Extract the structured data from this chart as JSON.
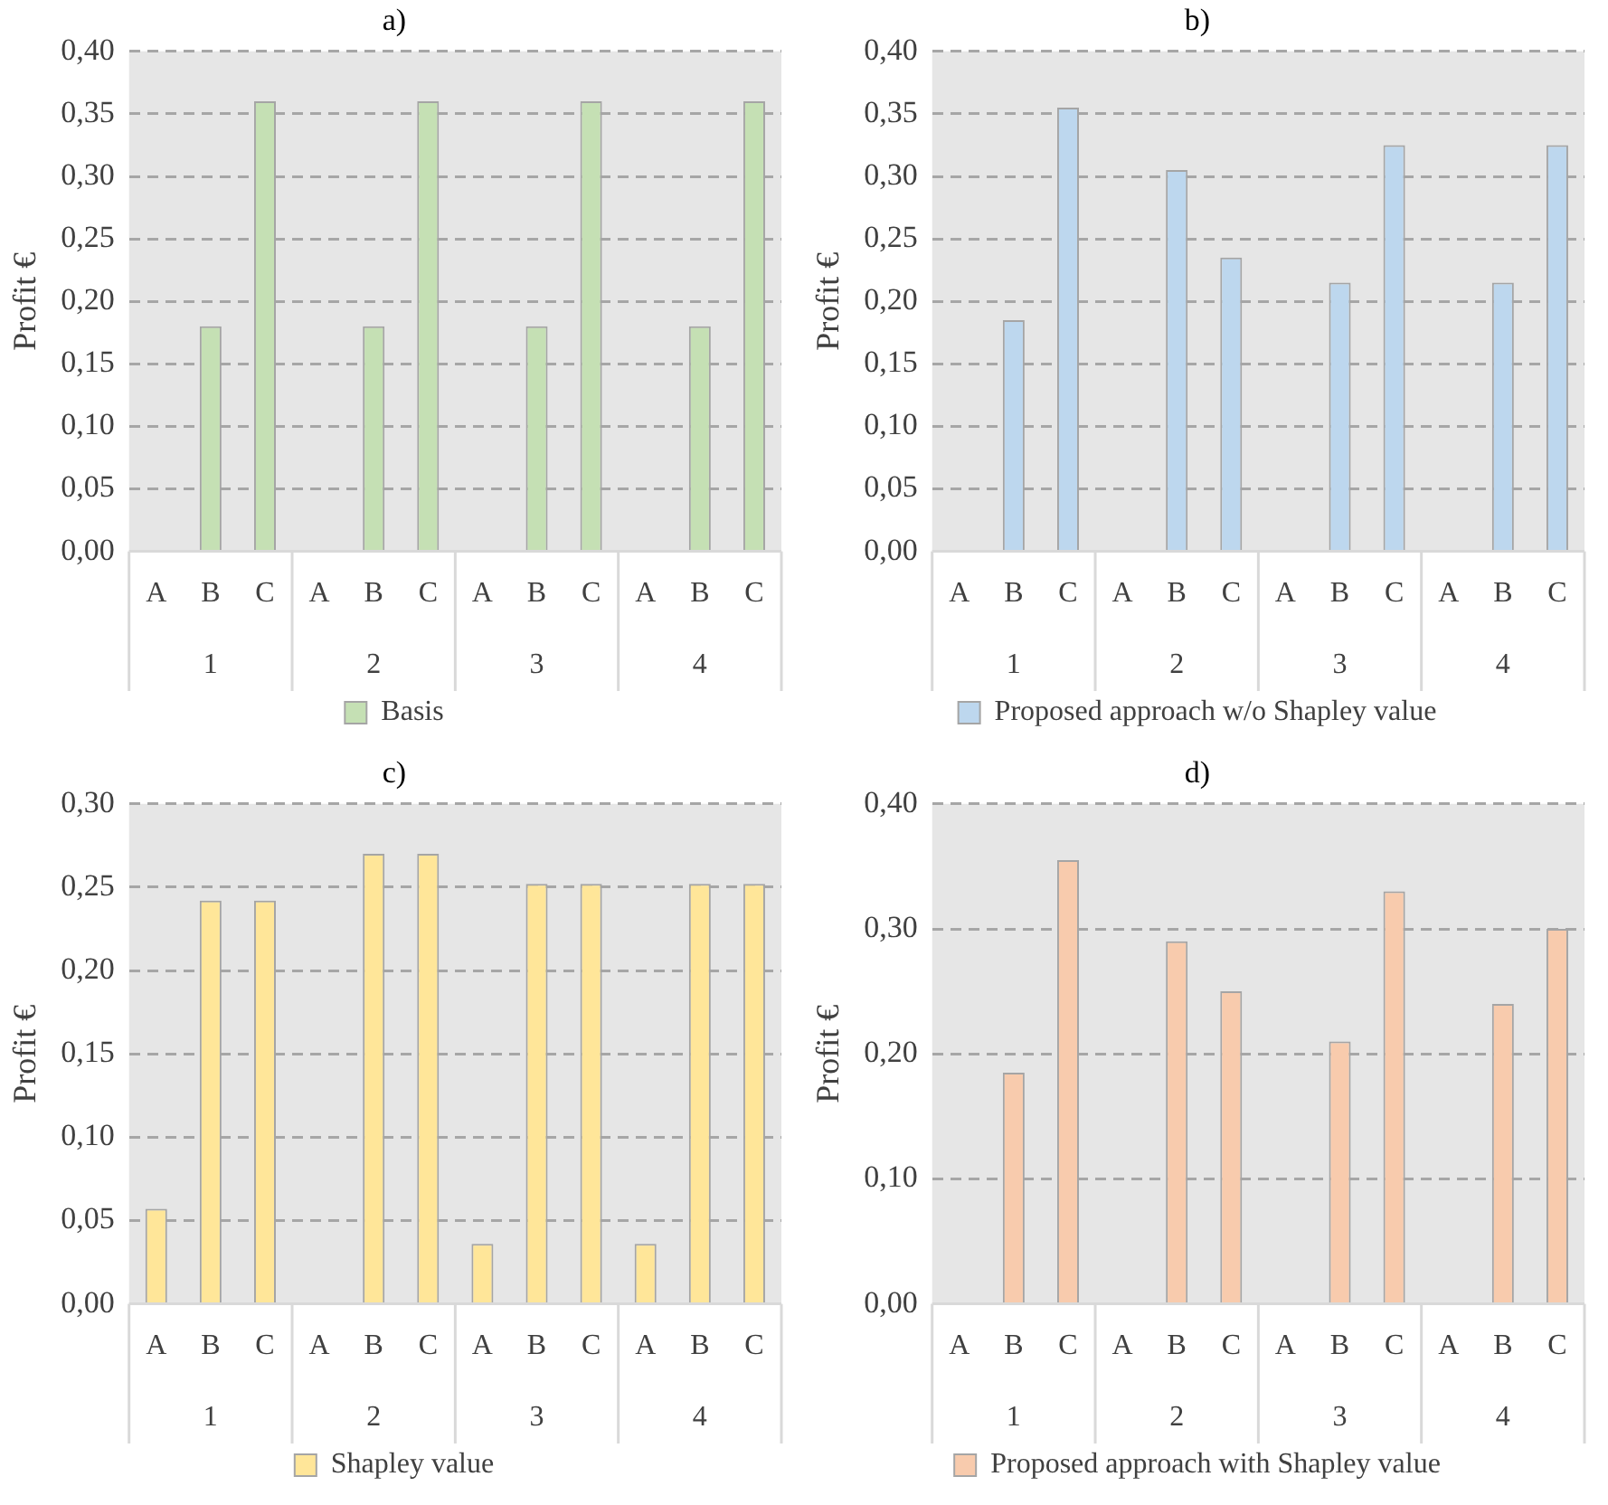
{
  "chart_data": [
    {
      "type": "bar",
      "title": "a)",
      "ylabel": "Profit €",
      "categories": [
        "A",
        "B",
        "C",
        "A",
        "B",
        "C",
        "A",
        "B",
        "C",
        "A",
        "B",
        "C"
      ],
      "series": [
        {
          "name": "Basis",
          "color": "#c5e0b4",
          "values": [
            0,
            0.18,
            0.36,
            0,
            0.18,
            0.36,
            0,
            0.18,
            0.36,
            0,
            0.18,
            0.36
          ]
        }
      ],
      "ylim": [
        0,
        0.4
      ],
      "yticks": [
        {
          "value": 0,
          "label": "0,00"
        },
        {
          "value": 0.05,
          "label": "0,05"
        },
        {
          "value": 0.1,
          "label": "0,10"
        },
        {
          "value": 0.15,
          "label": "0,15"
        },
        {
          "value": 0.2,
          "label": "0,20"
        },
        {
          "value": 0.25,
          "label": "0,25"
        },
        {
          "value": 0.3,
          "label": "0,30"
        },
        {
          "value": 0.35,
          "label": "0,35"
        },
        {
          "value": 0.4,
          "label": "0,40"
        }
      ],
      "grid": "y",
      "legend": "bottom",
      "annotations": [
        "1",
        "2",
        "3",
        "4"
      ]
    },
    {
      "type": "bar",
      "title": "b)",
      "ylabel": "Profit €",
      "categories": [
        "A",
        "B",
        "C",
        "A",
        "B",
        "C",
        "A",
        "B",
        "C",
        "A",
        "B",
        "C"
      ],
      "series": [
        {
          "name": "Proposed approach w/o Shapley value",
          "color": "#bdd7ee",
          "values": [
            0,
            0.185,
            0.355,
            0,
            0.305,
            0.235,
            0,
            0.215,
            0.325,
            0,
            0.215,
            0.325
          ]
        }
      ],
      "ylim": [
        0,
        0.4
      ],
      "yticks": [
        {
          "value": 0,
          "label": "0,00"
        },
        {
          "value": 0.05,
          "label": "0,05"
        },
        {
          "value": 0.1,
          "label": "0,10"
        },
        {
          "value": 0.15,
          "label": "0,15"
        },
        {
          "value": 0.2,
          "label": "0,20"
        },
        {
          "value": 0.25,
          "label": "0,25"
        },
        {
          "value": 0.3,
          "label": "0,30"
        },
        {
          "value": 0.35,
          "label": "0,35"
        },
        {
          "value": 0.4,
          "label": "0,40"
        }
      ],
      "grid": "y",
      "legend": "bottom",
      "annotations": [
        "1",
        "2",
        "3",
        "4"
      ]
    },
    {
      "type": "bar",
      "title": "c)",
      "ylabel": "Profit €",
      "categories": [
        "A",
        "B",
        "C",
        "A",
        "B",
        "C",
        "A",
        "B",
        "C",
        "A",
        "B",
        "C"
      ],
      "series": [
        {
          "name": "Shapley value",
          "color": "#ffe699",
          "values": [
            0.057,
            0.242,
            0.242,
            0,
            0.27,
            0.27,
            0.036,
            0.252,
            0.252,
            0.036,
            0.252,
            0.252
          ]
        }
      ],
      "ylim": [
        0,
        0.3
      ],
      "yticks": [
        {
          "value": 0,
          "label": "0,00"
        },
        {
          "value": 0.05,
          "label": "0,05"
        },
        {
          "value": 0.1,
          "label": "0,10"
        },
        {
          "value": 0.15,
          "label": "0,15"
        },
        {
          "value": 0.2,
          "label": "0,20"
        },
        {
          "value": 0.25,
          "label": "0,25"
        },
        {
          "value": 0.3,
          "label": "0,30"
        }
      ],
      "grid": "y",
      "legend": "bottom",
      "annotations": [
        "1",
        "2",
        "3",
        "4"
      ]
    },
    {
      "type": "bar",
      "title": "d)",
      "ylabel": "Profit €",
      "categories": [
        "A",
        "B",
        "C",
        "A",
        "B",
        "C",
        "A",
        "B",
        "C",
        "A",
        "B",
        "C"
      ],
      "series": [
        {
          "name": "Proposed approach with Shapley value",
          "color": "#f8cbad",
          "values": [
            0,
            0.185,
            0.355,
            0,
            0.29,
            0.25,
            0,
            0.21,
            0.33,
            0,
            0.24,
            0.3
          ]
        }
      ],
      "ylim": [
        0,
        0.4
      ],
      "yticks": [
        {
          "value": 0,
          "label": "0,00"
        },
        {
          "value": 0.1,
          "label": "0,10"
        },
        {
          "value": 0.2,
          "label": "0,20"
        },
        {
          "value": 0.3,
          "label": "0,30"
        },
        {
          "value": 0.4,
          "label": "0,40"
        }
      ],
      "grid": "y",
      "legend": "bottom",
      "annotations": [
        "1",
        "2",
        "3",
        "4"
      ]
    }
  ]
}
